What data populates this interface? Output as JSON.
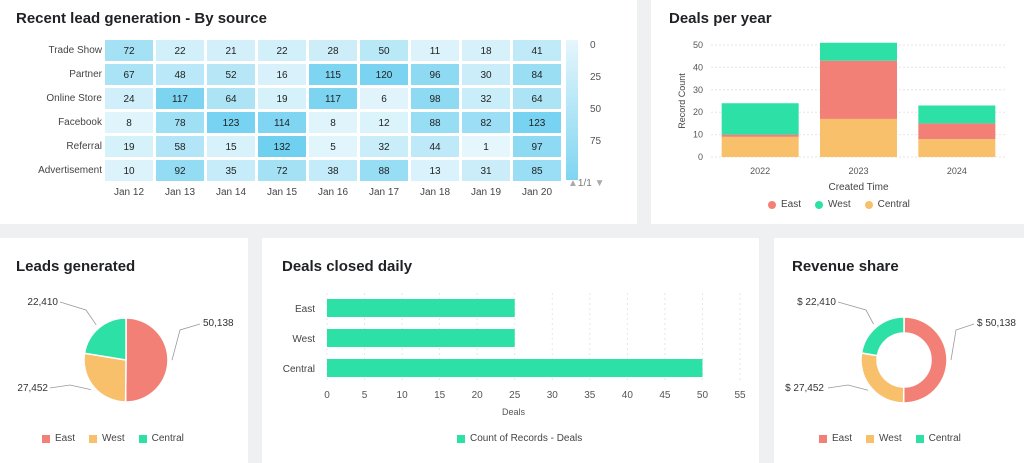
{
  "heatmap": {
    "title": "Recent lead generation - By source",
    "rows": [
      "Trade Show",
      "Partner",
      "Online Store",
      "Facebook",
      "Referral",
      "Advertisement"
    ],
    "columns": [
      "Jan 12",
      "Jan 13",
      "Jan 14",
      "Jan 15",
      "Jan 16",
      "Jan 17",
      "Jan 18",
      "Jan 19",
      "Jan 20"
    ],
    "values": [
      [
        72,
        22,
        21,
        22,
        28,
        50,
        11,
        18,
        41
      ],
      [
        67,
        48,
        52,
        16,
        115,
        120,
        96,
        30,
        84
      ],
      [
        24,
        117,
        64,
        19,
        117,
        6,
        98,
        32,
        64
      ],
      [
        8,
        78,
        123,
        114,
        8,
        12,
        88,
        82,
        123
      ],
      [
        19,
        58,
        15,
        132,
        5,
        32,
        44,
        1,
        97
      ],
      [
        10,
        92,
        35,
        72,
        38,
        88,
        13,
        31,
        85
      ]
    ],
    "scale_labels": [
      "0",
      "25",
      "50",
      "75"
    ],
    "pager": "1/1",
    "colors": {
      "low": "#e6f6fc",
      "high": "#6fd0f0"
    }
  },
  "deals_per_year": {
    "title": "Deals per year",
    "chart_data": {
      "type": "bar",
      "stacked": true,
      "categories": [
        "2022",
        "2023",
        "2024"
      ],
      "series": [
        {
          "name": "Central",
          "color": "#f9c06b",
          "values": [
            9,
            17,
            8
          ]
        },
        {
          "name": "East",
          "color": "#f38076",
          "values": [
            1,
            26,
            7
          ]
        },
        {
          "name": "West",
          "color": "#2de0a6",
          "values": [
            14,
            8,
            8
          ]
        }
      ],
      "xlabel": "Created Time",
      "ylabel": "Record Count",
      "ylim": [
        0,
        50
      ],
      "yticks": [
        "0",
        "10",
        "20",
        "30",
        "40",
        "50"
      ]
    },
    "legend": [
      {
        "label": "East",
        "color": "#f38076"
      },
      {
        "label": "West",
        "color": "#2de0a6"
      },
      {
        "label": "Central",
        "color": "#f9c06b"
      }
    ]
  },
  "leads_generated": {
    "title": "Leads generated",
    "chart_data": {
      "type": "pie",
      "labels": [
        "East",
        "West",
        "Central"
      ],
      "values": [
        50138,
        27452,
        22410
      ],
      "data_labels": [
        "50,138",
        "27,452",
        "22,410"
      ],
      "colors": [
        "#f38076",
        "#f9c06b",
        "#2de0a6"
      ]
    }
  },
  "deals_closed_daily": {
    "title": "Deals closed daily",
    "chart_data": {
      "type": "bar",
      "orientation": "horizontal",
      "categories": [
        "East",
        "West",
        "Central"
      ],
      "values": [
        25,
        25,
        50
      ],
      "xlabel": "Deals",
      "xlim": [
        0,
        55
      ],
      "xticks": [
        "0",
        "5",
        "10",
        "15",
        "20",
        "25",
        "30",
        "35",
        "40",
        "45",
        "50",
        "55"
      ],
      "series_name": "Count of Records - Deals",
      "color": "#2de0a6"
    }
  },
  "revenue_share": {
    "title": "Revenue share",
    "chart_data": {
      "type": "pie",
      "donut": true,
      "labels": [
        "East",
        "West",
        "Central"
      ],
      "values": [
        50138,
        27452,
        22410
      ],
      "data_labels": [
        "$ 50,138",
        "$ 27,452",
        "$ 22,410"
      ],
      "colors": [
        "#f38076",
        "#f9c06b",
        "#2de0a6"
      ]
    }
  }
}
